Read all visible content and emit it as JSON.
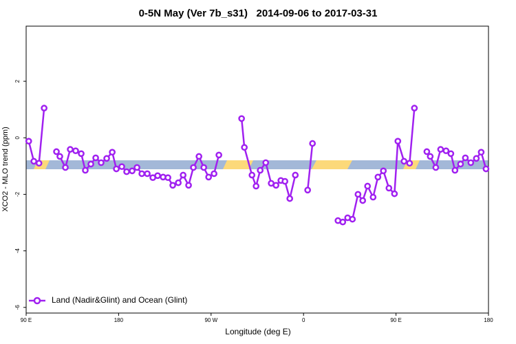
{
  "chart_data": {
    "type": "line",
    "title": "0-5N May (Ver 7b_s31)   2014-09-06 to 2017-03-31",
    "x_label": "Longitude (deg E)",
    "y_label": "XCO2 - MLO trend (ppm)",
    "xlim": [
      90,
      540
    ],
    "xticks": [
      {
        "value": 90,
        "label": "90 E"
      },
      {
        "value": 180,
        "label": "180"
      },
      {
        "value": 270,
        "label": "90 W"
      },
      {
        "value": 360,
        "label": "0"
      },
      {
        "value": 450,
        "label": "90 E"
      },
      {
        "value": 540,
        "label": "180"
      }
    ],
    "ylim": [
      -6.2,
      3.95
    ],
    "yticks": [
      -6,
      -4,
      -2,
      0,
      2
    ],
    "legend": "lower left",
    "series": [
      {
        "name": "Land (Nadir&Glint) and Ocean (Glint)",
        "color": "#a020f0",
        "x": [
          92.5,
          97.5,
          102.5,
          107.5,
          113,
          119.5,
          122.8,
          128.2,
          132.9,
          138.2,
          143.6,
          147.6,
          153,
          157.7,
          163,
          168.4,
          173.8,
          177.8,
          183.1,
          187.8,
          193.2,
          197.9,
          202.6,
          207.9,
          213.3,
          218,
          223.3,
          228,
          232.7,
          238.1,
          242.8,
          248.1,
          252.8,
          258.2,
          262.9,
          267.6,
          272.9,
          277.6,
          290,
          299.7,
          302.4,
          309.8,
          313.8,
          317.8,
          323.2,
          328.5,
          333.2,
          337.9,
          341.9,
          346.6,
          352,
          358,
          364,
          368.7,
          380,
          393.5,
          398.2,
          402.9,
          407.6,
          413,
          417.6,
          422.3,
          427.7,
          432.4,
          437.7,
          443.1,
          448.5,
          451.8,
          457.8,
          463.2,
          467.9,
          474,
          480,
          483.3,
          488.7,
          493.4,
          498.7,
          503.4,
          507.4,
          512.8,
          517.5,
          522.8,
          528.2,
          532.9,
          537.6
        ],
        "values": [
          -0.12,
          -0.83,
          -0.9,
          1.05,
          null,
          -0.49,
          -0.66,
          -1.05,
          -0.41,
          -0.46,
          -0.56,
          -1.15,
          -0.93,
          -0.71,
          -0.88,
          -0.73,
          -0.51,
          -1.1,
          -1.02,
          -1.2,
          -1.17,
          -1.05,
          -1.27,
          -1.27,
          -1.41,
          -1.34,
          -1.39,
          -1.41,
          -1.68,
          -1.59,
          -1.32,
          -1.68,
          -1.05,
          -0.66,
          -1.05,
          -1.39,
          -1.27,
          -0.61,
          null,
          0.68,
          -0.34,
          -1.32,
          -1.71,
          -1.15,
          -0.88,
          -1.61,
          -1.68,
          -1.51,
          -1.54,
          -2.15,
          -1.32,
          null,
          -1.85,
          -0.2,
          null,
          -2.93,
          -2.98,
          -2.83,
          -2.88,
          -2.0,
          -2.22,
          -1.71,
          -2.1,
          -1.39,
          -1.17,
          -1.78,
          -1.98,
          -0.12,
          -0.83,
          -0.9,
          1.05,
          null,
          -0.49,
          -0.66,
          -1.05,
          -0.41,
          -0.46,
          -0.56,
          -1.15,
          -0.93,
          -0.71,
          -0.88,
          -0.73,
          -0.51,
          -1.1
        ]
      }
    ]
  }
}
